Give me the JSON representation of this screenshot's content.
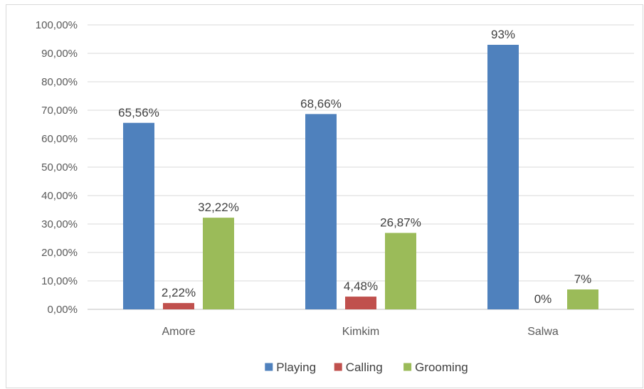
{
  "chart_data": {
    "type": "bar",
    "title": "",
    "xlabel": "",
    "ylabel": "",
    "categories": [
      "Amore",
      "Kimkim",
      "Salwa"
    ],
    "series": [
      {
        "name": "Playing",
        "color": "#4f81bd",
        "values": [
          65.56,
          68.66,
          93
        ],
        "labels": [
          "65,56%",
          "68,66%",
          "93%"
        ]
      },
      {
        "name": "Calling",
        "color": "#c0504d",
        "values": [
          2.22,
          4.48,
          0
        ],
        "labels": [
          "2,22%",
          "4,48%",
          "0%"
        ]
      },
      {
        "name": "Grooming",
        "color": "#9bbb59",
        "values": [
          32.22,
          26.87,
          7
        ],
        "labels": [
          "32,22%",
          "26,87%",
          "7%"
        ]
      }
    ],
    "ylim": [
      0,
      100
    ],
    "yticks": [
      0,
      10,
      20,
      30,
      40,
      50,
      60,
      70,
      80,
      90,
      100
    ],
    "ytick_labels": [
      "0,00%",
      "10,00%",
      "20,00%",
      "30,00%",
      "40,00%",
      "50,00%",
      "60,00%",
      "70,00%",
      "80,00%",
      "90,00%",
      "100,00%"
    ],
    "grid": true,
    "legend_position": "bottom"
  }
}
